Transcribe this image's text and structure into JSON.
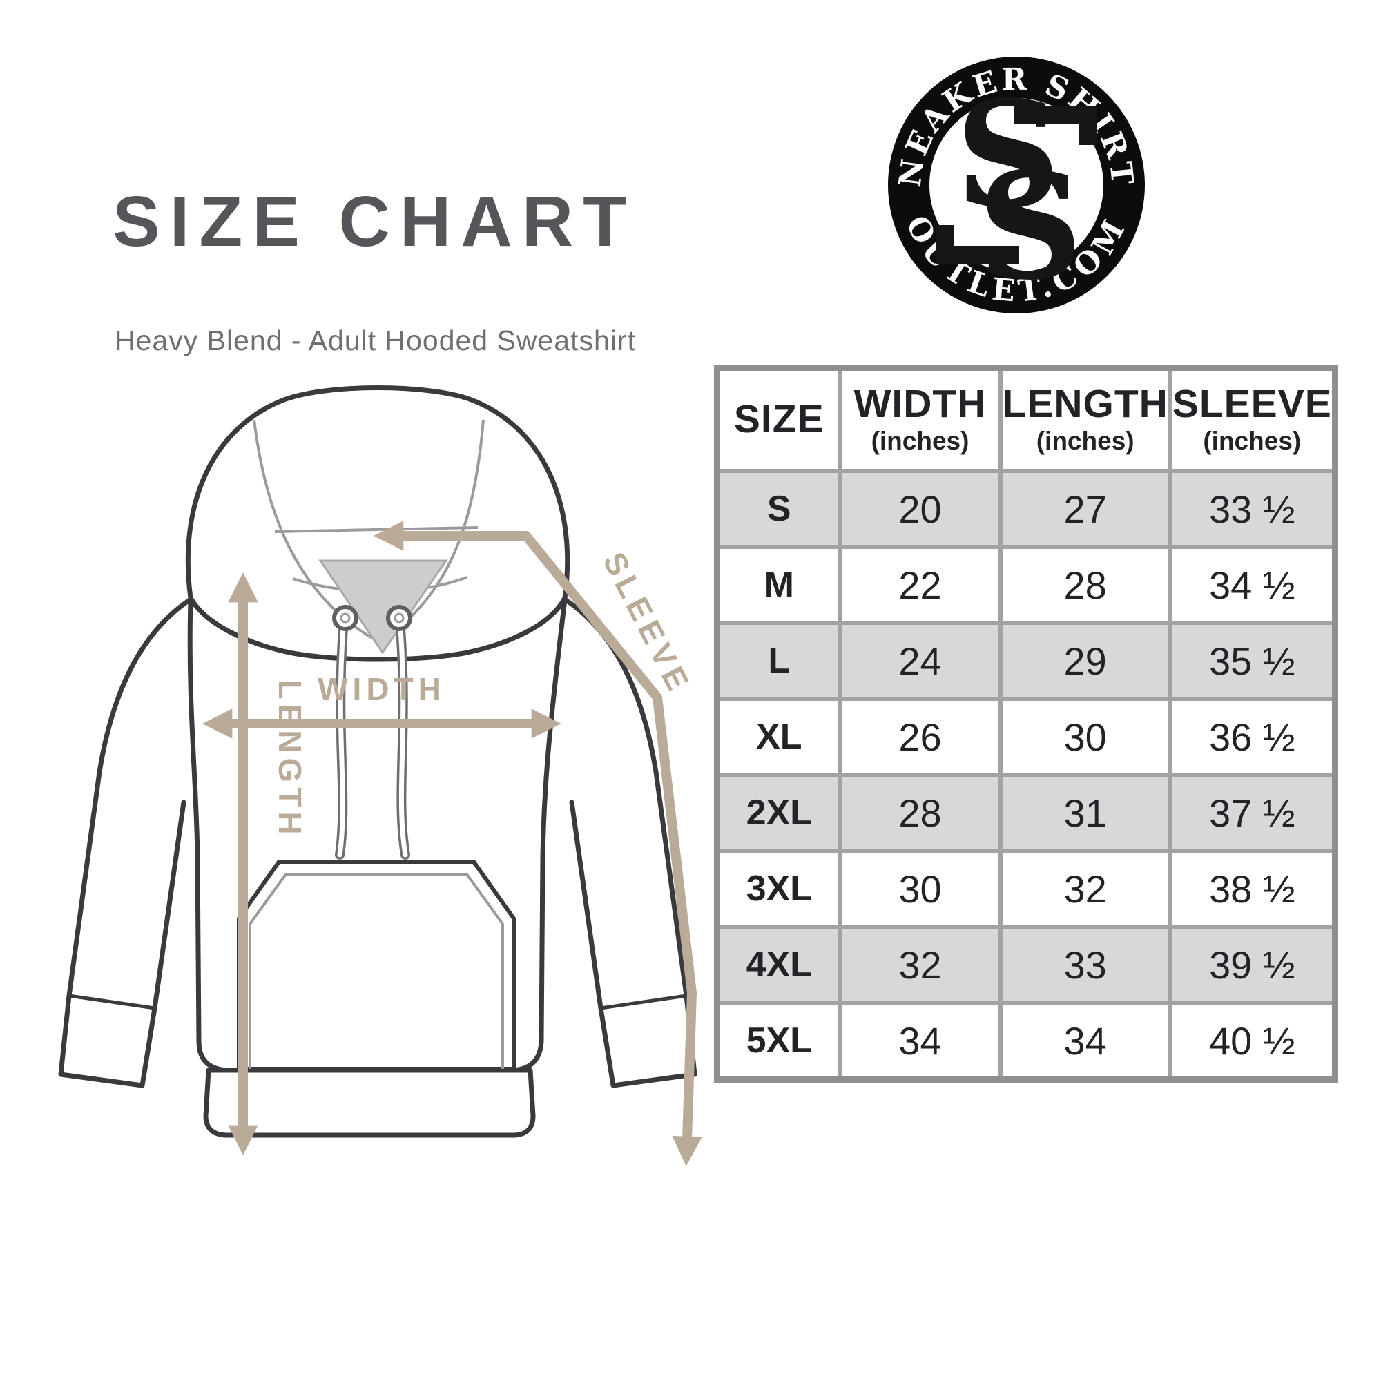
{
  "page": {
    "title": "SIZE CHART",
    "subtitle": "Heavy Blend - Adult Hooded Sweatshirt"
  },
  "logo": {
    "top_text": "SNEAKER SHIRTS",
    "bottom_text": "OUTLET.COM",
    "monogram_top": "S",
    "monogram_bottom": "S"
  },
  "diagram": {
    "width_label": "WIDTH",
    "length_label": "LENGTH",
    "sleeve_label": "SLEEVE"
  },
  "chart_data": {
    "type": "table",
    "title": "SIZE CHART",
    "subtitle": "Heavy Blend - Adult Hooded Sweatshirt",
    "columns": [
      {
        "label": "SIZE",
        "unit": ""
      },
      {
        "label": "WIDTH",
        "unit": "(inches)"
      },
      {
        "label": "LENGTH",
        "unit": "(inches)"
      },
      {
        "label": "SLEEVE",
        "unit": "(inches)"
      }
    ],
    "rows": [
      {
        "size": "S",
        "width": "20",
        "length": "27",
        "sleeve": "33 ½"
      },
      {
        "size": "M",
        "width": "22",
        "length": "28",
        "sleeve": "34 ½"
      },
      {
        "size": "L",
        "width": "24",
        "length": "29",
        "sleeve": "35 ½"
      },
      {
        "size": "XL",
        "width": "26",
        "length": "30",
        "sleeve": "36 ½"
      },
      {
        "size": "2XL",
        "width": "28",
        "length": "31",
        "sleeve": "37 ½"
      },
      {
        "size": "3XL",
        "width": "30",
        "length": "32",
        "sleeve": "38 ½"
      },
      {
        "size": "4XL",
        "width": "32",
        "length": "33",
        "sleeve": "39 ½"
      },
      {
        "size": "5XL",
        "width": "34",
        "length": "34",
        "sleeve": "40 ½"
      }
    ]
  },
  "colors": {
    "accent_tan": "#b9ab97",
    "row_gray": "#d8d8d8",
    "grid_gray": "#a2a2a2",
    "title_gray": "#55565a",
    "outline_dark": "#3a3a3e"
  }
}
